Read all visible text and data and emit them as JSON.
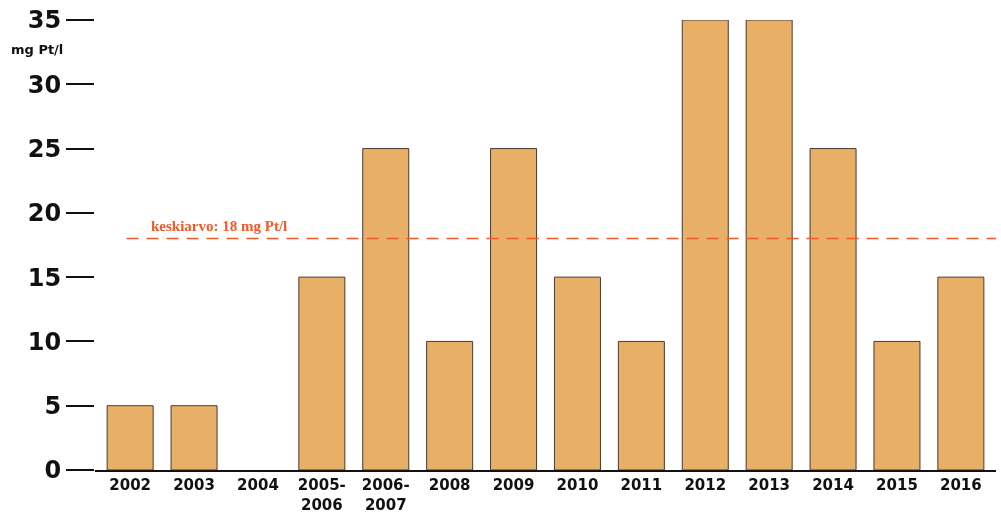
{
  "chart_data": {
    "type": "bar",
    "ylabel": "mg Pt/l",
    "categories": [
      "2002",
      "2003",
      "2004",
      "2005-2006",
      "2006-2007",
      "2008",
      "2009",
      "2010",
      "2011",
      "2012",
      "2013",
      "2014",
      "2015",
      "2016"
    ],
    "values": [
      5,
      5,
      0,
      15,
      25,
      10,
      25,
      15,
      10,
      35,
      35,
      25,
      10,
      15
    ],
    "color": "#e8b066",
    "ylim": [
      0,
      35
    ],
    "yticks": [
      0,
      5,
      10,
      15,
      20,
      25,
      30,
      35
    ],
    "grid": false,
    "ref_lines": [
      {
        "axis": "y",
        "value": 18,
        "label": "keskiarvo: 18 mg Pt/l",
        "color": "#ee5a2a",
        "line_style": "dashed"
      }
    ]
  }
}
